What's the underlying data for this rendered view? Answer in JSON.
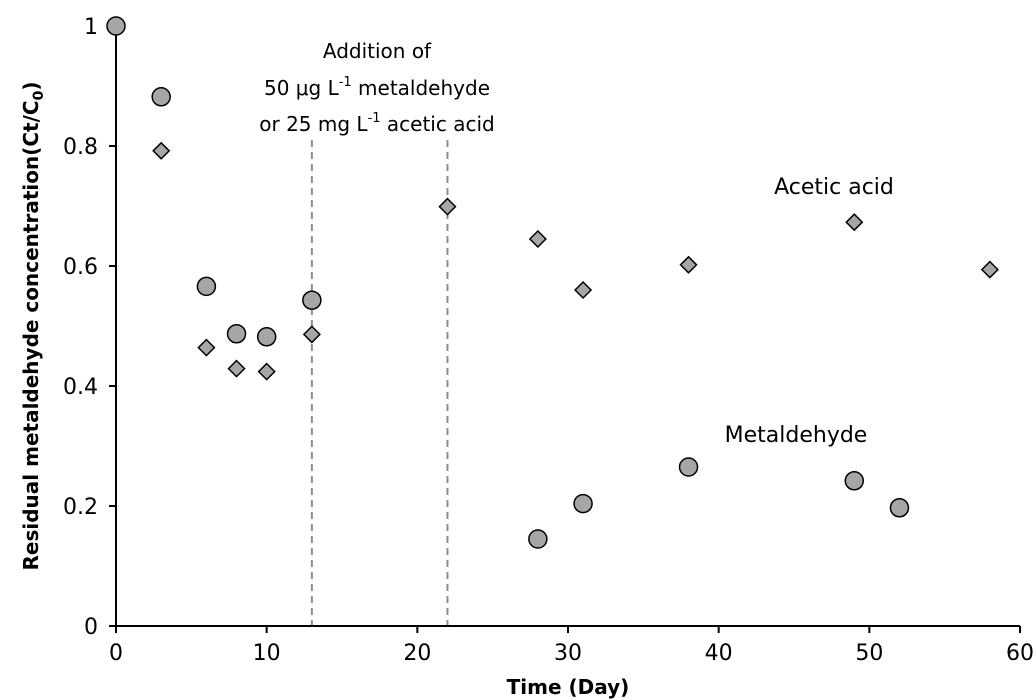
{
  "chart_data": {
    "type": "scatter",
    "xlabel": "Time (Day)",
    "ylabel": "Residual metaldehyde concentration(Ct/C0)",
    "xlim": [
      0,
      60
    ],
    "ylim": [
      0,
      1
    ],
    "x_ticks": [
      "0",
      "10",
      "20",
      "30",
      "40",
      "50",
      "60"
    ],
    "y_ticks": [
      "0",
      "0.2",
      "0.4",
      "0.6",
      "0.8",
      "1"
    ],
    "grid": false,
    "series": [
      {
        "name": "Metaldehyde",
        "marker": "circle",
        "color": "#a6a6a6",
        "points": [
          [
            0,
            1.0
          ],
          [
            3,
            0.882
          ],
          [
            6,
            0.566
          ],
          [
            8,
            0.487
          ],
          [
            10,
            0.482
          ],
          [
            13,
            0.543
          ],
          [
            28,
            0.145
          ],
          [
            31,
            0.204
          ],
          [
            38,
            0.265
          ],
          [
            49,
            0.242
          ],
          [
            52,
            0.197
          ]
        ]
      },
      {
        "name": "Acetic acid",
        "marker": "diamond",
        "color": "#a6a6a6",
        "points": [
          [
            0,
            1.0
          ],
          [
            3,
            0.792
          ],
          [
            6,
            0.464
          ],
          [
            8,
            0.429
          ],
          [
            10,
            0.424
          ],
          [
            13,
            0.486
          ],
          [
            22,
            0.699
          ],
          [
            28,
            0.645
          ],
          [
            31,
            0.56
          ],
          [
            38,
            0.602
          ],
          [
            49,
            0.673
          ],
          [
            58,
            0.594
          ]
        ]
      }
    ],
    "reference_lines": [
      13,
      22
    ],
    "annotation": {
      "line1": "Addition of",
      "line2_prefix": "50 μg L",
      "line2_sup": "-1",
      "line2_suffix": " metaldehyde",
      "line3_prefix": "or 25 mg L",
      "line3_sup": "-1",
      "line3_suffix": " acetic acid"
    }
  }
}
